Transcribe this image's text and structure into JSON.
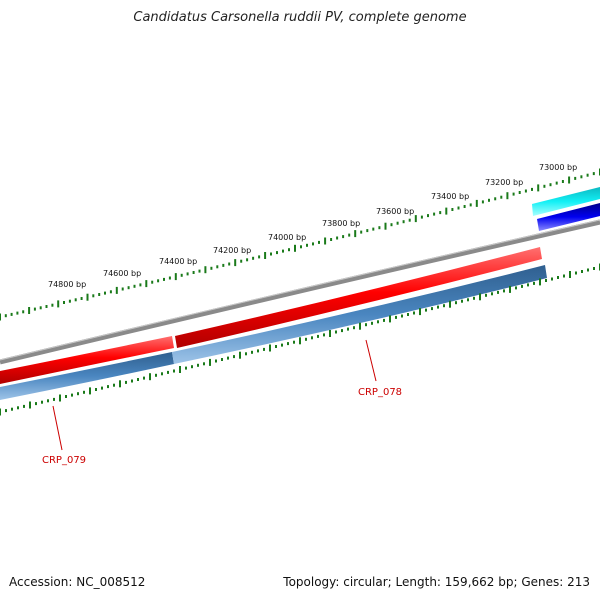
{
  "title": "Candidatus Carsonella ruddii PV, complete genome",
  "footer": {
    "accession": "Accession: NC_008512",
    "summary": "Topology: circular; Length: 159,662 bp; Genes: 213"
  },
  "ruler": {
    "unit": "bp",
    "labels": [
      "73000 bp",
      "73200 bp",
      "73400 bp",
      "73600 bp",
      "73800 bp",
      "74000 bp",
      "74200 bp",
      "74400 bp",
      "74600 bp",
      "74800 bp"
    ]
  },
  "genes": [
    {
      "label": "CRP_078",
      "strand": "reverse",
      "color": "#cc0000"
    },
    {
      "label": "CRP_079",
      "strand": "reverse",
      "color": "#cc0000"
    }
  ],
  "colors": {
    "backbone": "#808080",
    "feature_red": "#e00000",
    "feature_blue": "#3f7fb9",
    "feature_cyan": "#10dde6",
    "feature_navy": "#0a0ae6",
    "ticks": "#1a7a1a",
    "label_red": "#cc0000"
  }
}
